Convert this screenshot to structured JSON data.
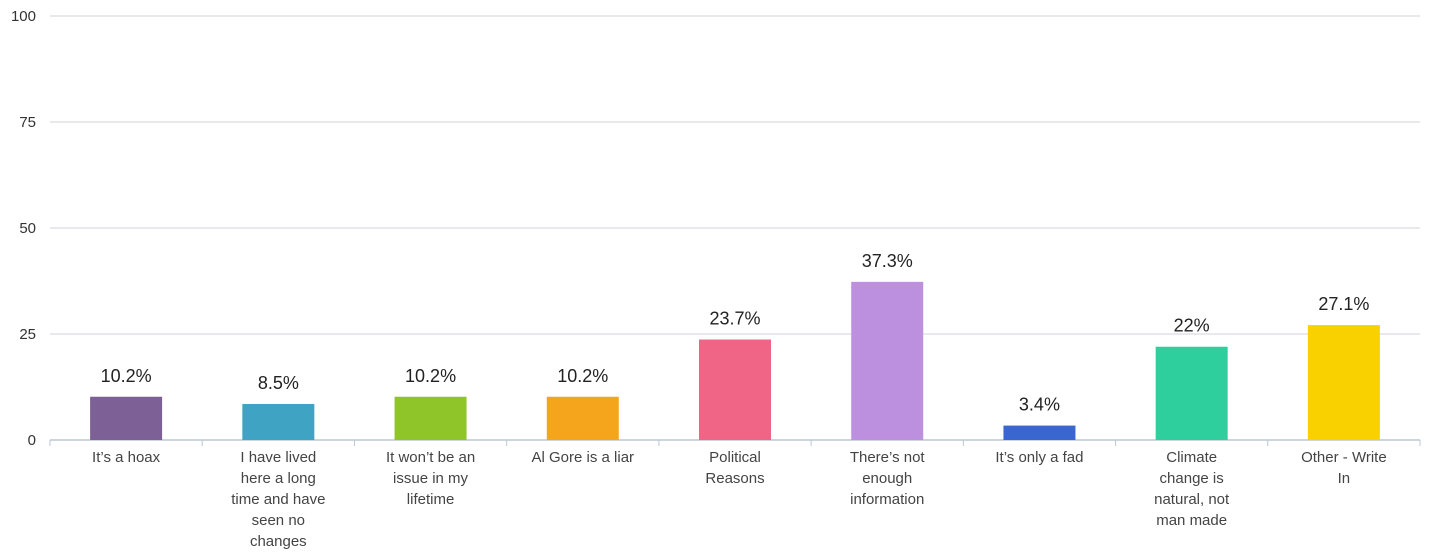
{
  "chart_data": {
    "type": "bar",
    "title": "",
    "xlabel": "",
    "ylabel": "",
    "ylim": [
      0,
      100
    ],
    "yticks": [
      "0",
      "25",
      "50",
      "75",
      "100"
    ],
    "grid": true,
    "categories": [
      "It's a hoax",
      "I have lived here a long time and have seen no changes",
      "It won't be an issue in my lifetime",
      "Al Gore is a liar",
      "Political Reasons",
      "There's not enough information",
      "It's only a fad",
      "Climate change is natural, not man made",
      "Other - Write In"
    ],
    "category_lines": [
      [
        "It’s a hoax"
      ],
      [
        "I have lived",
        "here a long",
        "time and have",
        "seen no",
        "changes"
      ],
      [
        "It won’t be an",
        "issue in my",
        "lifetime"
      ],
      [
        "Al Gore is a liar"
      ],
      [
        "Political",
        "Reasons"
      ],
      [
        "There’s not",
        "enough",
        "information"
      ],
      [
        "It’s only a fad"
      ],
      [
        "Climate",
        "change is",
        "natural, not",
        "man made"
      ],
      [
        "Other - Write",
        "In"
      ]
    ],
    "values": [
      10.2,
      8.5,
      10.2,
      10.2,
      23.7,
      37.3,
      3.4,
      22,
      27.1
    ],
    "data_labels": [
      "10.2%",
      "8.5%",
      "10.2%",
      "10.2%",
      "23.7%",
      "37.3%",
      "3.4%",
      "22%",
      "27.1%"
    ],
    "colors": [
      "#7d6196",
      "#3fa4c4",
      "#8fc528",
      "#f4a51c",
      "#f06585",
      "#bc90df",
      "#3a66d0",
      "#2ecf9d",
      "#f9d100"
    ]
  }
}
